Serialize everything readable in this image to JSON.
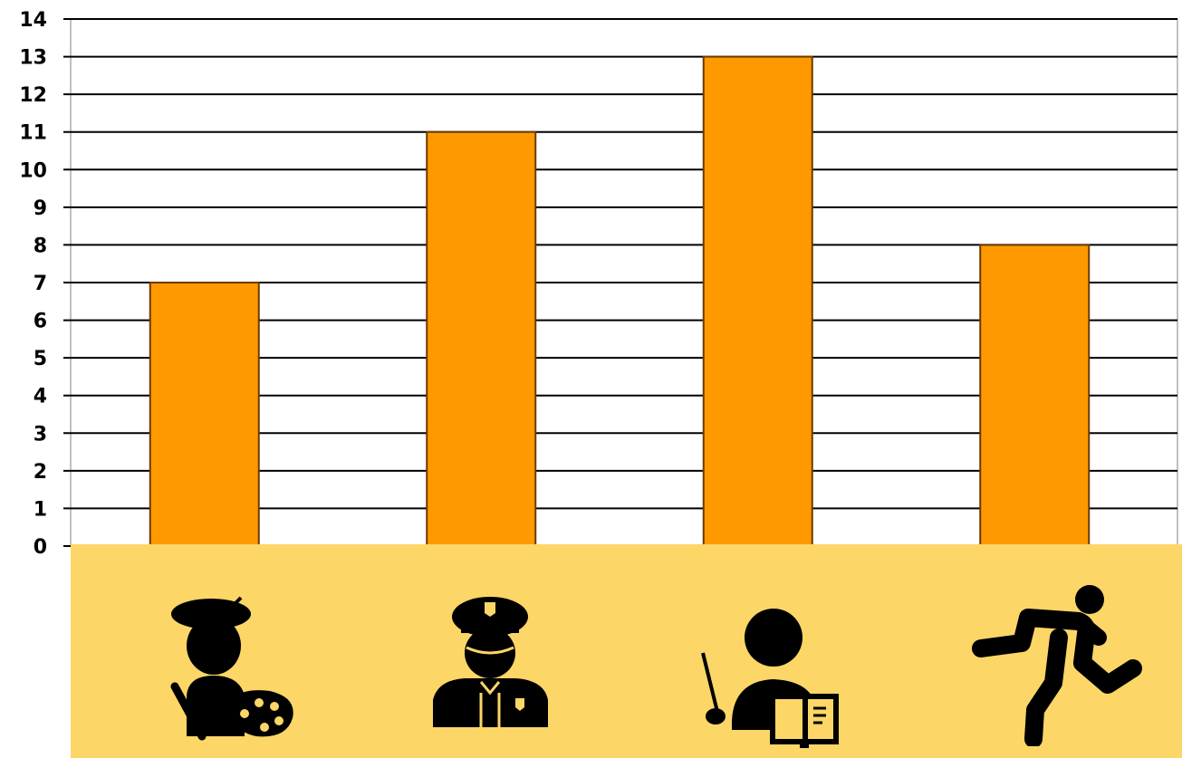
{
  "chart_data": {
    "type": "bar",
    "categories": [
      "artist-icon",
      "police-officer-icon",
      "teacher-icon",
      "runner-icon"
    ],
    "values": [
      7,
      11,
      13,
      8
    ],
    "ylim": [
      0,
      14
    ],
    "yticks": [
      "0",
      "1",
      "2",
      "3",
      "4",
      "5",
      "6",
      "7",
      "8",
      "9",
      "10",
      "11",
      "12",
      "13",
      "14"
    ],
    "grid": true,
    "bar_color": "#ff9900",
    "bar_stroke": "#6b3a00",
    "grid_color": "#000000",
    "icon_panel_color": "#fcd667"
  }
}
